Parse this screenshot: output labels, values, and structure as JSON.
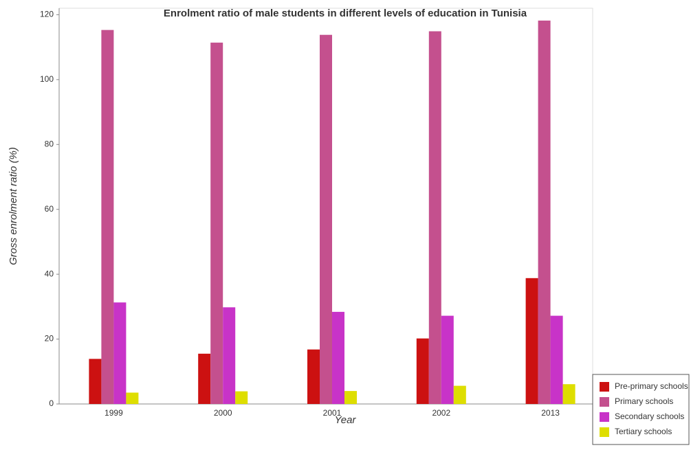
{
  "chart_data": {
    "type": "bar",
    "title": "Enrolment ratio of male students in different levels of education in Tunisia",
    "x_label": "Year",
    "y_label": "Gross enrolment ratio (%)",
    "categories": [
      "1999",
      "2000",
      "2001",
      "2002",
      "2013"
    ],
    "series": [
      {
        "name": "Pre-primary schools",
        "color": "#cc1111",
        "values": [
          13.9,
          15.5,
          16.8,
          20.2,
          38.8
        ]
      },
      {
        "name": "Primary schools",
        "color": "#c4508e",
        "values": [
          115.3,
          111.4,
          113.8,
          114.9,
          118.2
        ]
      },
      {
        "name": "Secondary schools",
        "color": "#c833c8",
        "values": [
          31.3,
          29.8,
          28.4,
          27.2,
          27.2
        ]
      },
      {
        "name": "Tertiary schools",
        "color": "#dede00",
        "values": [
          3.5,
          3.9,
          4.0,
          5.6,
          6.1
        ]
      }
    ],
    "ylim": [
      0,
      122
    ],
    "yticks": [
      0,
      20,
      40,
      60,
      80,
      100,
      120
    ],
    "grid": false,
    "legend": "bottom-right"
  }
}
